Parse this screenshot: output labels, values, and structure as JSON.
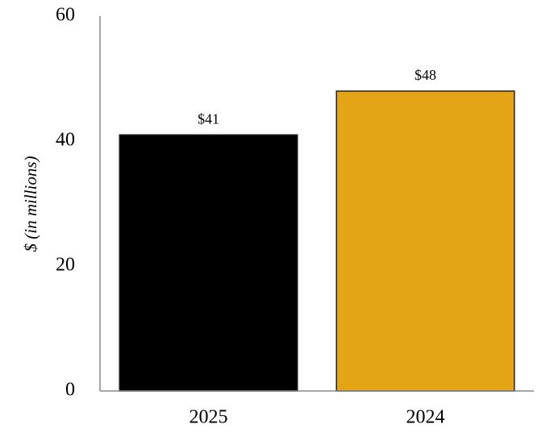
{
  "chart_data": {
    "type": "bar",
    "y_label": "$ (in millions)",
    "categories": [
      "2025",
      "2024"
    ],
    "values": [
      41,
      48
    ],
    "value_labels": [
      "$41",
      "$48"
    ],
    "colors": [
      "#000000",
      "#e3a516"
    ],
    "ylim": [
      0,
      60
    ],
    "yticks": [
      0,
      20,
      40,
      60
    ],
    "grid": false
  }
}
